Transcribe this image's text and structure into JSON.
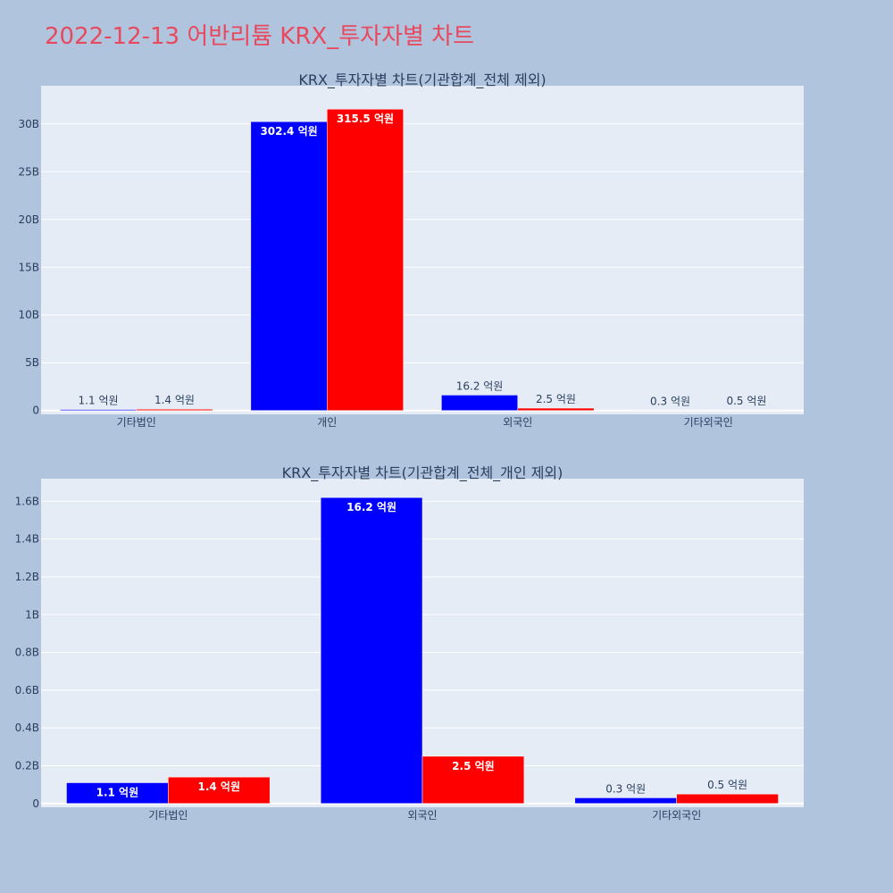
{
  "page": {
    "title": "2022-12-13 어반리튬 KRX_투자자별 차트",
    "title_color": "#e8495e",
    "background": "#b0c4de",
    "plot_background": "#e5ecf6"
  },
  "chart_data": [
    {
      "type": "bar",
      "title": "KRX_투자자별 차트(기관합계_전체 제외)",
      "categories": [
        "기타법인",
        "개인",
        "외국인",
        "기타외국인"
      ],
      "ylim": [
        -400000000,
        34000000000
      ],
      "ytick_values": [
        0,
        5000000000,
        10000000000,
        15000000000,
        20000000000,
        25000000000,
        30000000000
      ],
      "ytick_labels": [
        "0",
        "5B",
        "10B",
        "15B",
        "20B",
        "25B",
        "30B"
      ],
      "grid": true,
      "legend": "none",
      "series": [
        {
          "color": "#0000ff",
          "values": [
            110000000,
            30240000000,
            1620000000,
            30000000
          ],
          "labels": [
            "1.1 억원",
            "302.4 억원",
            "16.2 억원",
            "0.3 억원"
          ]
        },
        {
          "color": "#ff0000",
          "values": [
            140000000,
            31550000000,
            250000000,
            50000000
          ],
          "labels": [
            "1.4 억원",
            "315.5 억원",
            "2.5 억원",
            "0.5 억원"
          ]
        }
      ]
    },
    {
      "type": "bar",
      "title": "KRX_투자자별 차트(기관합계_전체_개인 제외)",
      "categories": [
        "기타법인",
        "외국인",
        "기타외국인"
      ],
      "ylim": [
        -20000000,
        1720000000
      ],
      "ytick_values": [
        0,
        200000000,
        400000000,
        600000000,
        800000000,
        1000000000,
        1200000000,
        1400000000,
        1600000000
      ],
      "ytick_labels": [
        "0",
        "0.2B",
        "0.4B",
        "0.6B",
        "0.8B",
        "1B",
        "1.2B",
        "1.4B",
        "1.6B"
      ],
      "grid": true,
      "legend": "none",
      "series": [
        {
          "color": "#0000ff",
          "values": [
            110000000,
            1620000000,
            30000000
          ],
          "labels": [
            "1.1 억원",
            "16.2 억원",
            "0.3 억원"
          ]
        },
        {
          "color": "#ff0000",
          "values": [
            140000000,
            250000000,
            50000000
          ],
          "labels": [
            "1.4 억원",
            "2.5 억원",
            "0.5 억원"
          ]
        }
      ]
    }
  ]
}
